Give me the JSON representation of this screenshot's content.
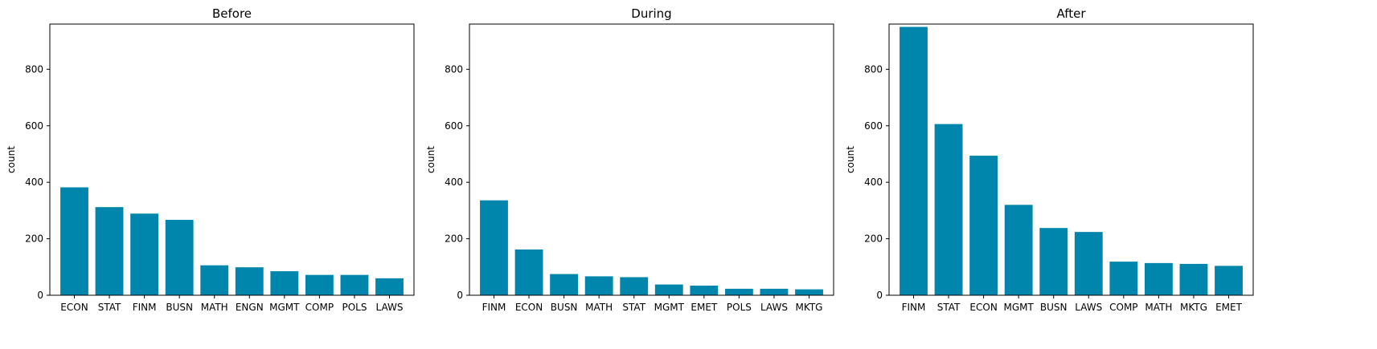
{
  "chart_data": [
    {
      "type": "bar",
      "title": "Before",
      "xlabel": "",
      "ylabel": "count",
      "ylim": [
        0,
        960
      ],
      "yticks": [
        0,
        200,
        400,
        600,
        800
      ],
      "categories": [
        "ECON",
        "STAT",
        "FINM",
        "BUSN",
        "MATH",
        "ENGN",
        "MGMT",
        "COMP",
        "POLS",
        "LAWS"
      ],
      "values": [
        382,
        312,
        289,
        267,
        106,
        99,
        85,
        72,
        72,
        60
      ],
      "color": "#0086ad",
      "grid": false
    },
    {
      "type": "bar",
      "title": "During",
      "xlabel": "",
      "ylabel": "count",
      "ylim": [
        0,
        960
      ],
      "yticks": [
        0,
        200,
        400,
        600,
        800
      ],
      "categories": [
        "FINM",
        "ECON",
        "BUSN",
        "MATH",
        "STAT",
        "MGMT",
        "EMET",
        "POLS",
        "LAWS",
        "MKTG"
      ],
      "values": [
        336,
        162,
        75,
        67,
        64,
        38,
        34,
        23,
        23,
        21
      ],
      "color": "#0086ad",
      "grid": false
    },
    {
      "type": "bar",
      "title": "After",
      "xlabel": "",
      "ylabel": "count",
      "ylim": [
        0,
        960
      ],
      "yticks": [
        0,
        200,
        400,
        600,
        800
      ],
      "categories": [
        "FINM",
        "STAT",
        "ECON",
        "MGMT",
        "BUSN",
        "LAWS",
        "COMP",
        "MATH",
        "MKTG",
        "EMET"
      ],
      "values": [
        950,
        606,
        494,
        320,
        238,
        224,
        119,
        114,
        111,
        104
      ],
      "color": "#0086ad",
      "grid": false
    }
  ]
}
